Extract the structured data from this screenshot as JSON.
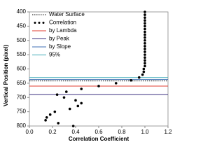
{
  "chart_data": {
    "type": "scatter",
    "xlabel": "Correlation Coefficient",
    "ylabel": "Vertical Position (pixel)",
    "xlim": [
      0,
      1.2
    ],
    "xticks": [
      {
        "value": 0,
        "label": "0.0"
      },
      {
        "value": 0.2,
        "label": "0.2"
      },
      {
        "value": 0.4,
        "label": "0.4"
      },
      {
        "value": 0.6,
        "label": "0.6"
      },
      {
        "value": 0.8,
        "label": "0.8"
      },
      {
        "value": 1,
        "label": "1.0"
      },
      {
        "value": 1.2,
        "label": "1.2"
      }
    ],
    "ylim": [
      800,
      400
    ],
    "yticks": [
      400,
      450,
      500,
      550,
      600,
      650,
      700,
      750,
      800
    ],
    "lines": [
      {
        "name": "Water Surface",
        "color": "#000000",
        "style": "dotted",
        "value": 642
      },
      {
        "name": "by Lambda",
        "color": "#e03c31",
        "style": "solid",
        "value": 660
      },
      {
        "name": "by Peak",
        "color": "#3a2f7f",
        "style": "solid",
        "value": 690
      },
      {
        "name": "by Slope",
        "color": "#3f6fb5",
        "style": "solid",
        "value": 637
      },
      {
        "name": "95%",
        "color": "#3aa9b5",
        "style": "solid",
        "value": 630
      }
    ],
    "series": [
      {
        "name": "Correlation",
        "color": "#000000",
        "x": [
          1.0,
          1.0,
          1.0,
          1.0,
          1.0,
          1.0,
          1.0,
          1.0,
          1.0,
          1.0,
          1.0,
          1.0,
          1.0,
          1.0,
          1.0,
          1.0,
          1.0,
          1.0,
          1.0,
          1.0,
          0.99,
          0.99,
          0.98,
          0.95,
          0.88,
          0.75,
          0.6,
          0.45,
          0.32,
          0.24,
          0.3,
          0.4,
          0.45,
          0.42,
          0.35,
          0.22,
          0.18,
          0.15,
          0.14,
          0.25,
          0.38
        ],
        "y": [
          400,
          410,
          420,
          430,
          440,
          450,
          460,
          470,
          480,
          490,
          500,
          510,
          520,
          530,
          540,
          550,
          560,
          570,
          580,
          590,
          600,
          610,
          620,
          630,
          640,
          650,
          660,
          670,
          680,
          690,
          700,
          710,
          720,
          730,
          740,
          750,
          760,
          770,
          780,
          790,
          800
        ]
      }
    ],
    "legend": "upper left"
  }
}
